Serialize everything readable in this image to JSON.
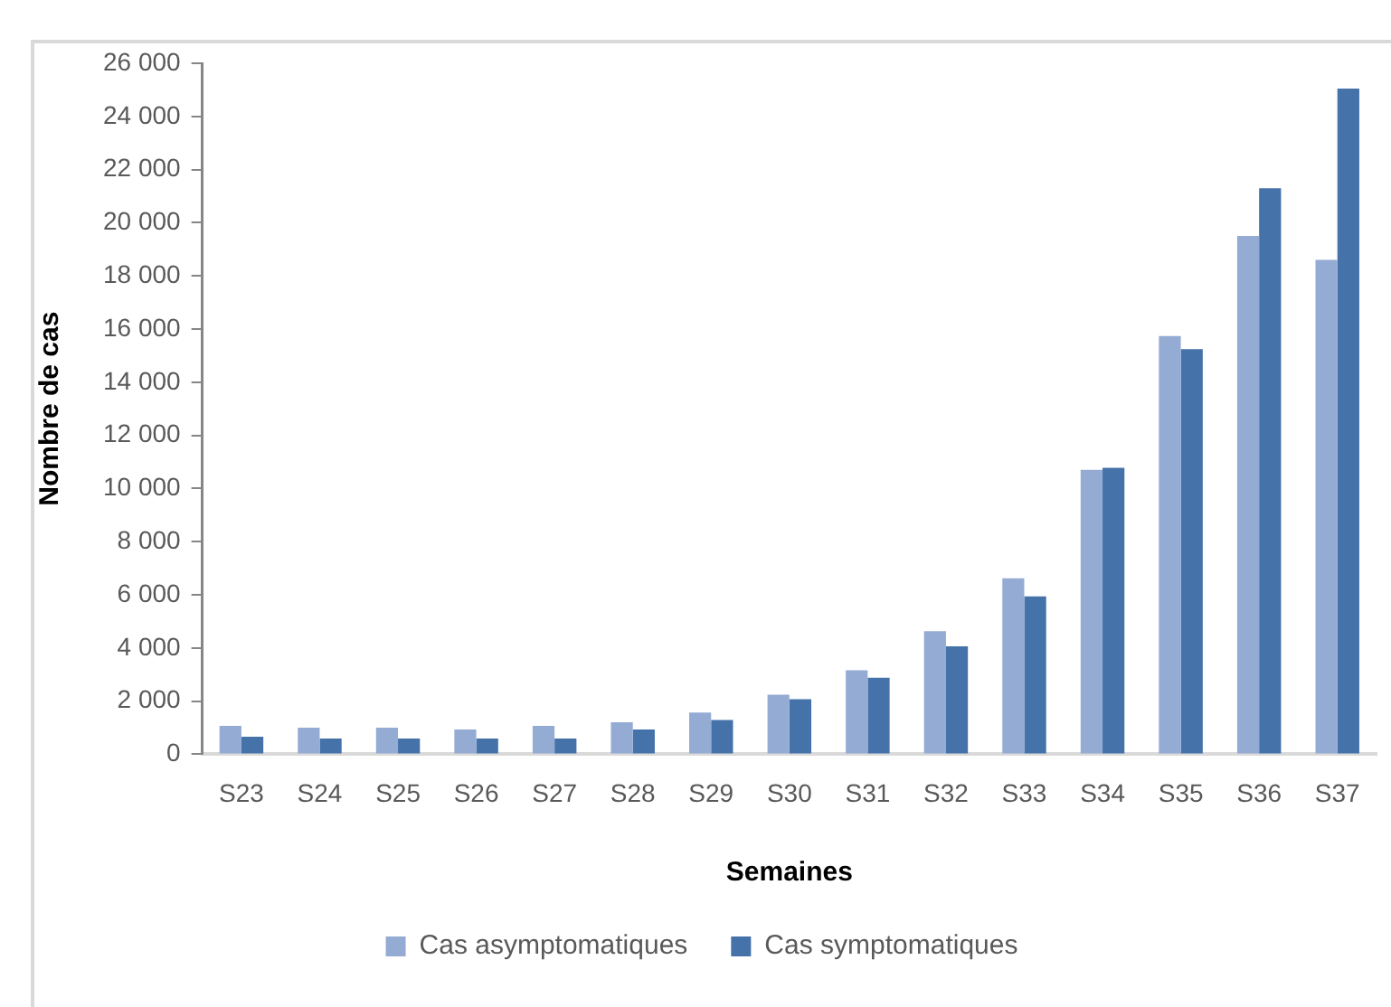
{
  "chart_data": {
    "type": "bar",
    "xlabel": "Semaines",
    "ylabel": "Nombre de cas",
    "categories": [
      "S23",
      "S24",
      "S25",
      "S26",
      "S27",
      "S28",
      "S29",
      "S30",
      "S31",
      "S32",
      "S33",
      "S34",
      "S35",
      "S36",
      "S37"
    ],
    "series": [
      {
        "name": "Cas asymptomatiques",
        "color": "#94abd4",
        "values": [
          1070,
          1000,
          1000,
          930,
          1070,
          1200,
          1570,
          2240,
          3160,
          4630,
          6620,
          10700,
          15740,
          19500,
          18600
        ]
      },
      {
        "name": "Cas symptomatiques",
        "color": "#4472a9",
        "values": [
          660,
          590,
          590,
          590,
          590,
          930,
          1290,
          2070,
          2880,
          4060,
          5940,
          10780,
          15240,
          21300,
          25050
        ]
      }
    ],
    "ylim": [
      0,
      26000
    ],
    "yticks": [
      {
        "value": 0,
        "label": "0"
      },
      {
        "value": 2000,
        "label": "2 000"
      },
      {
        "value": 4000,
        "label": "4 000"
      },
      {
        "value": 6000,
        "label": "6 000"
      },
      {
        "value": 8000,
        "label": "8 000"
      },
      {
        "value": 10000,
        "label": "10 000"
      },
      {
        "value": 12000,
        "label": "12 000"
      },
      {
        "value": 14000,
        "label": "14 000"
      },
      {
        "value": 16000,
        "label": "16 000"
      },
      {
        "value": 18000,
        "label": "18 000"
      },
      {
        "value": 20000,
        "label": "20 000"
      },
      {
        "value": 22000,
        "label": "22 000"
      },
      {
        "value": 24000,
        "label": "24 000"
      },
      {
        "value": 26000,
        "label": "26 000"
      }
    ],
    "legend": "bottom"
  }
}
